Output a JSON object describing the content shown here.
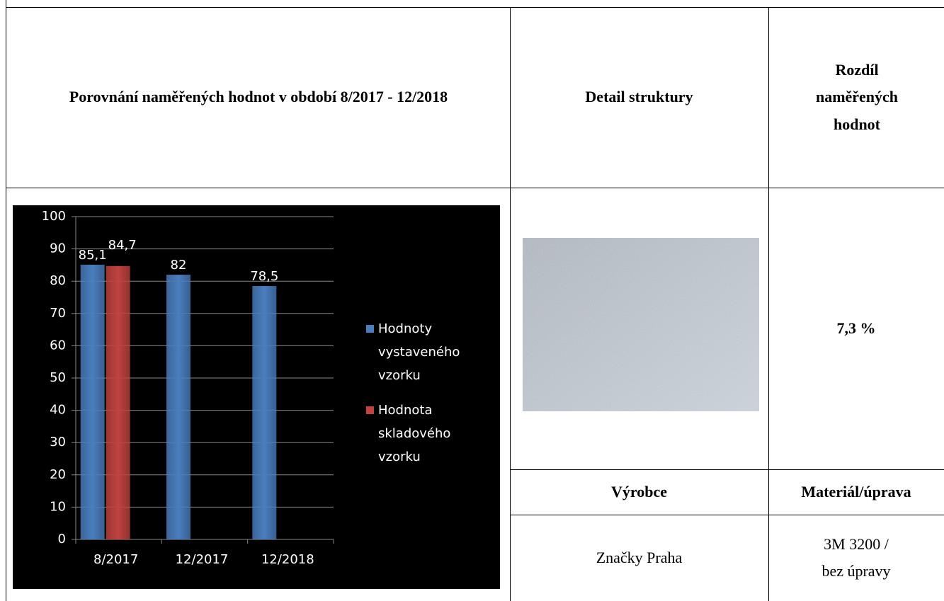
{
  "table": {
    "header": [
      "Porovnání naměřených hodnot v období 8/2017 - 12/2018",
      "Detail struktury",
      "Rozdíl naměřených hodnot"
    ],
    "difference": "7,3 %",
    "subheader": [
      "Výrobce",
      "Materiál/úprava"
    ],
    "row": [
      "Značky Praha",
      [
        "3M 3200 /",
        "bez úpravy"
      ]
    ]
  },
  "chart_data": {
    "type": "bar",
    "categories": [
      "8/2017",
      "12/2017",
      "12/2018"
    ],
    "series": [
      {
        "name": "Hodnoty vystaveného vzorku",
        "color": "#4a7ebf",
        "values": [
          85.1,
          82,
          78.5
        ],
        "value_labels": [
          "85,1",
          "82",
          "78,5"
        ]
      },
      {
        "name": "Hodnota skladového vzorku",
        "color": "#c0433f",
        "values": [
          84.7,
          null,
          null
        ],
        "value_labels": [
          "84,7",
          null,
          null
        ]
      }
    ],
    "ylim": [
      0,
      100
    ],
    "yticks": [
      0,
      10,
      20,
      30,
      40,
      50,
      60,
      70,
      80,
      90,
      100
    ],
    "grid": true,
    "legend": "right"
  }
}
